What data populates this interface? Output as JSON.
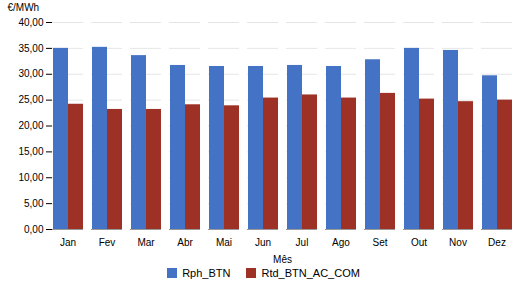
{
  "chart_data": {
    "type": "bar",
    "categories": [
      "Jan",
      "Fev",
      "Mar",
      "Abr",
      "Mai",
      "Jun",
      "Jul",
      "Ago",
      "Set",
      "Out",
      "Nov",
      "Dez"
    ],
    "series": [
      {
        "name": "Rph_BTN",
        "color": "#4472C4",
        "values": [
          35.0,
          35.2,
          33.6,
          31.7,
          31.5,
          31.5,
          31.7,
          31.5,
          32.8,
          35.0,
          34.6,
          29.7
        ]
      },
      {
        "name": "Rtd_BTN_AC_COM",
        "color": "#9E3125",
        "values": [
          24.2,
          23.2,
          23.2,
          24.1,
          23.9,
          25.4,
          26.0,
          25.4,
          26.3,
          25.2,
          24.7,
          25.0
        ]
      }
    ],
    "xlabel": "Mês",
    "ylabel": "€/MWh",
    "ylim": [
      0,
      40
    ],
    "yticks": [
      {
        "value": 0,
        "label": "0,00"
      },
      {
        "value": 5,
        "label": "5,00"
      },
      {
        "value": 10,
        "label": "10,00"
      },
      {
        "value": 15,
        "label": "15,00"
      },
      {
        "value": 20,
        "label": "20,00"
      },
      {
        "value": 25,
        "label": "25,00"
      },
      {
        "value": 30,
        "label": "30,00"
      },
      {
        "value": 35,
        "label": "35,00"
      },
      {
        "value": 40,
        "label": "40,00"
      }
    ],
    "grid": true,
    "legend": "bottom"
  }
}
